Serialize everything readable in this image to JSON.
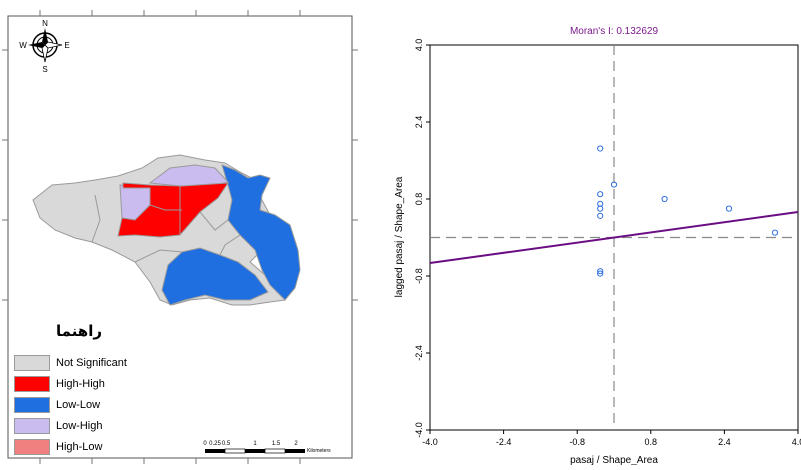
{
  "map": {
    "legend_title": "راهنما",
    "compass": {
      "n": "N",
      "e": "E",
      "s": "S",
      "w": "W"
    },
    "legend": [
      {
        "label": "Not Significant",
        "color": "#d9d9d9"
      },
      {
        "label": "High-High",
        "color": "#ff0000"
      },
      {
        "label": "Low-Low",
        "color": "#1f6fe0"
      },
      {
        "label": "Low-High",
        "color": "#cbbcf0"
      },
      {
        "label": "High-Low",
        "color": "#f08080"
      }
    ],
    "scale_bar": {
      "ticks": [
        "0",
        "0.25",
        "0.5",
        "1",
        "1.5",
        "2"
      ],
      "unit": "Kilometers"
    }
  },
  "chart_data": {
    "type": "scatter",
    "title": "Moran's I: 0.132629",
    "xlabel": "pasaj / Shape_Area",
    "ylabel": "lagged pasaj / Shape_Area",
    "xlim": [
      -4.0,
      4.0
    ],
    "ylim": [
      -4.0,
      4.0
    ],
    "x_ticks": [
      "-4.0",
      "-2.4",
      "-0.8",
      "0.8",
      "2.4",
      "4.0"
    ],
    "y_ticks": [
      "-4.0",
      "-2.4",
      "-0.8",
      "0.8",
      "2.4",
      "4.0"
    ],
    "x_tick_values": [
      -4.0,
      -2.4,
      -0.8,
      0.8,
      2.4,
      4.0
    ],
    "y_tick_values": [
      -4.0,
      -2.4,
      -0.8,
      0.8,
      2.4,
      4.0
    ],
    "mean_x": 0.0,
    "mean_y": 0.0,
    "points": [
      {
        "x": -0.3,
        "y": 1.85
      },
      {
        "x": -0.3,
        "y": 0.9
      },
      {
        "x": 0.0,
        "y": 1.1
      },
      {
        "x": -0.3,
        "y": 0.6
      },
      {
        "x": -0.3,
        "y": 0.45
      },
      {
        "x": -0.3,
        "y": 0.7
      },
      {
        "x": -0.3,
        "y": -0.7
      },
      {
        "x": -0.3,
        "y": -0.75
      },
      {
        "x": 1.1,
        "y": 0.8
      },
      {
        "x": 2.5,
        "y": 0.6
      },
      {
        "x": 3.5,
        "y": 0.1
      }
    ],
    "regression": {
      "slope": 0.132629,
      "intercept": 0.0
    },
    "colors": {
      "points": "#2f6fe0",
      "regression": "#6a0d83",
      "title": "#7b1a8a",
      "mean_lines": "#888888"
    }
  }
}
